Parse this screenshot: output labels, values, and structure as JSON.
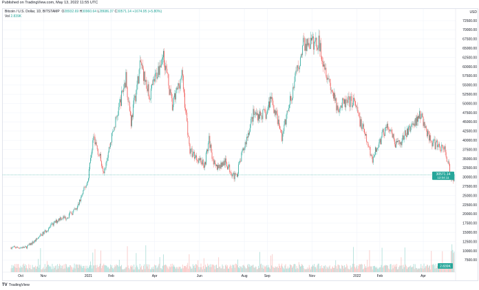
{
  "header": {
    "published": "Published on TradingView.com, May 13, 2022 11:55 UTC"
  },
  "legend": {
    "symbol": "Bitcoin / U.S. Dollar, 1D, BITSTAMP",
    "o_label": "O",
    "o": "28932.69",
    "h_label": "H",
    "h": "30960.64",
    "l_label": "L",
    "l": "28686.37",
    "c_label": "C",
    "c": "30571.14",
    "change": "+1674.95 (+5.80%)",
    "vol_label": "Vol",
    "vol": "2.839K"
  },
  "footer": {
    "logo": "TradingView"
  },
  "colors": {
    "up": "#26a69a",
    "down": "#ef5350",
    "up_volume": "#a8dcd6",
    "down_volume": "#f8c3c1",
    "grid": "#f0f3fa"
  },
  "chart_data": {
    "type": "candlestick",
    "currency": "USD",
    "ylim": [
      5000,
      73750
    ],
    "y_ticks": [
      "72500.00",
      "70000.00",
      "67500.00",
      "65000.00",
      "62500.00",
      "60000.00",
      "57500.00",
      "55000.00",
      "52500.00",
      "50000.00",
      "47500.00",
      "45000.00",
      "42500.00",
      "40000.00",
      "37500.00",
      "35000.00",
      "32500.00",
      "30000.00",
      "27500.00",
      "25000.00",
      "22500.00",
      "20000.00",
      "17500.00",
      "15000.00",
      "12500.00",
      "10000.00",
      "7500.00"
    ],
    "x_ticks": [
      {
        "label": "Oct",
        "date": "2020-10-01"
      },
      {
        "label": "Nov",
        "date": "2020-11-01"
      },
      {
        "label": "2021",
        "date": "2021-01-01"
      },
      {
        "label": "Feb",
        "date": "2021-02-01"
      },
      {
        "label": "Apr",
        "date": "2021-04-01"
      },
      {
        "label": "Jun",
        "date": "2021-06-01"
      },
      {
        "label": "Aug",
        "date": "2021-08-01"
      },
      {
        "label": "Sep",
        "date": "2021-09-01"
      },
      {
        "label": "Nov",
        "date": "2021-11-01"
      },
      {
        "label": "2022",
        "date": "2022-01-01"
      },
      {
        "label": "Feb",
        "date": "2022-02-01"
      },
      {
        "label": "Apr",
        "date": "2022-04-01"
      }
    ],
    "last_price": {
      "value": 30571.14,
      "label": "30571.14",
      "countdown": "12:04:11"
    },
    "volume_label": "2.839K",
    "approx_closes": [
      [
        "2020-09-18",
        10900
      ],
      [
        "2020-10-08",
        10900
      ],
      [
        "2020-10-21",
        12800
      ],
      [
        "2020-11-05",
        15600
      ],
      [
        "2020-11-24",
        19000
      ],
      [
        "2020-12-01",
        19000
      ],
      [
        "2020-12-16",
        21300
      ],
      [
        "2020-12-31",
        29000
      ],
      [
        "2021-01-08",
        41000
      ],
      [
        "2021-01-22",
        32000
      ],
      [
        "2021-02-08",
        46000
      ],
      [
        "2021-02-21",
        57000
      ],
      [
        "2021-02-28",
        45000
      ],
      [
        "2021-03-13",
        61000
      ],
      [
        "2021-03-25",
        52000
      ],
      [
        "2021-04-13",
        63500
      ],
      [
        "2021-04-25",
        49000
      ],
      [
        "2021-05-08",
        58000
      ],
      [
        "2021-05-19",
        37000
      ],
      [
        "2021-06-08",
        33500
      ],
      [
        "2021-06-14",
        40000
      ],
      [
        "2021-06-22",
        32500
      ],
      [
        "2021-07-06",
        34000
      ],
      [
        "2021-07-20",
        29800
      ],
      [
        "2021-08-13",
        47000
      ],
      [
        "2021-08-31",
        47000
      ],
      [
        "2021-09-06",
        52000
      ],
      [
        "2021-09-21",
        41000
      ],
      [
        "2021-10-20",
        66000
      ],
      [
        "2021-11-10",
        66500
      ],
      [
        "2021-12-04",
        49000
      ],
      [
        "2021-12-27",
        50800
      ],
      [
        "2022-01-22",
        35000
      ],
      [
        "2022-02-10",
        44000
      ],
      [
        "2022-02-24",
        38300
      ],
      [
        "2022-03-28",
        47100
      ],
      [
        "2022-04-11",
        39500
      ],
      [
        "2022-04-30",
        37700
      ],
      [
        "2022-05-09",
        30000
      ],
      [
        "2022-05-12",
        28932.69
      ],
      [
        "2022-05-13",
        30571.14
      ]
    ]
  }
}
